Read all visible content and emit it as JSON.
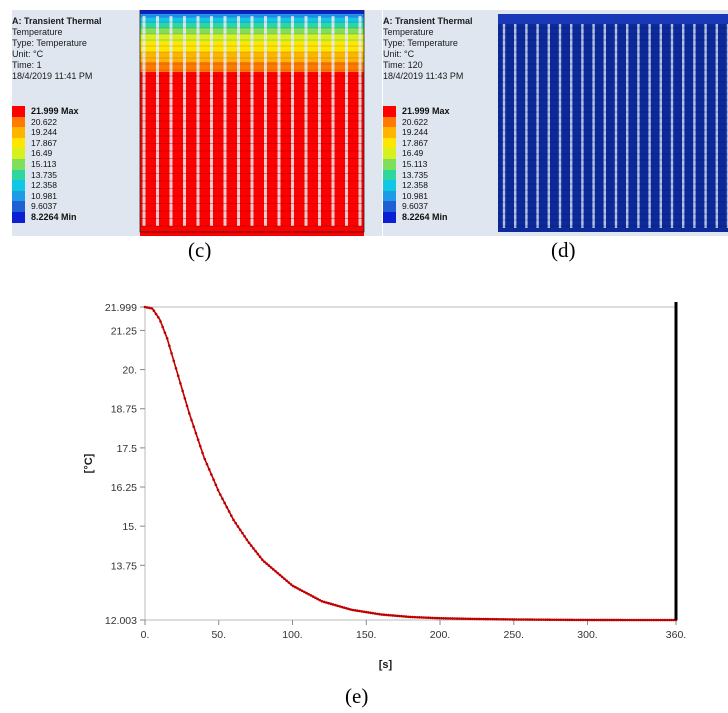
{
  "panels": [
    {
      "caption": "(c)",
      "info": {
        "title": "A: Transient Thermal",
        "quantity": "Temperature",
        "type": "Type: Temperature",
        "unit": "Unit: °C",
        "time": "Time: 1",
        "date": "18/4/2019 11:41 PM"
      }
    },
    {
      "caption": "(d)",
      "info": {
        "title": "A: Transient Thermal",
        "quantity": "Temperature",
        "type": "Type: Temperature",
        "unit": "Unit: °C",
        "time": "Time: 120",
        "date": "18/4/2019 11:43 PM"
      }
    }
  ],
  "legend": [
    {
      "label": "21.999 Max",
      "color": "#ff0000"
    },
    {
      "label": "20.622",
      "color": "#ff7a00"
    },
    {
      "label": "19.244",
      "color": "#ffb400"
    },
    {
      "label": "17.867",
      "color": "#ffe600"
    },
    {
      "label": "16.49",
      "color": "#d6f020"
    },
    {
      "label": "15.113",
      "color": "#7ee05a"
    },
    {
      "label": "13.735",
      "color": "#2ed6a0"
    },
    {
      "label": "12.358",
      "color": "#10c8e6"
    },
    {
      "label": "10.981",
      "color": "#1e9be6"
    },
    {
      "label": "9.6037",
      "color": "#1e5fd6"
    },
    {
      "label": "8.2264 Min",
      "color": "#0a1ed2"
    }
  ],
  "chart_caption": "(e)",
  "chart_data": {
    "type": "line",
    "xlabel": "[s]",
    "ylabel": "[°C]",
    "xlim": [
      0,
      360
    ],
    "ylim": [
      12.003,
      21.999
    ],
    "xticks": [
      "0.",
      "50.",
      "100.",
      "150.",
      "200.",
      "250.",
      "300.",
      "360."
    ],
    "xtick_values": [
      0,
      50,
      100,
      150,
      200,
      250,
      300,
      360
    ],
    "yticks": [
      "21.999",
      "21.25",
      "20.",
      "18.75",
      "17.5",
      "16.25",
      "15.",
      "13.75",
      "12.003"
    ],
    "ytick_values": [
      21.999,
      21.25,
      20,
      18.75,
      17.5,
      16.25,
      15,
      13.75,
      12.003
    ],
    "series": [
      {
        "color": "#c00000",
        "x": [
          0,
          5,
          10,
          15,
          20,
          25,
          30,
          40,
          50,
          60,
          70,
          80,
          90,
          100,
          120,
          140,
          160,
          180,
          200,
          220,
          250,
          280,
          300,
          330,
          360
        ],
        "y": [
          21.999,
          21.95,
          21.6,
          21.0,
          20.2,
          19.4,
          18.6,
          17.2,
          16.1,
          15.2,
          14.5,
          13.9,
          13.5,
          13.1,
          12.6,
          12.33,
          12.18,
          12.1,
          12.06,
          12.04,
          12.02,
          12.01,
          12.005,
          12.003,
          12.003
        ]
      }
    ],
    "marker_line": {
      "x": 360,
      "color": "#000000"
    }
  }
}
